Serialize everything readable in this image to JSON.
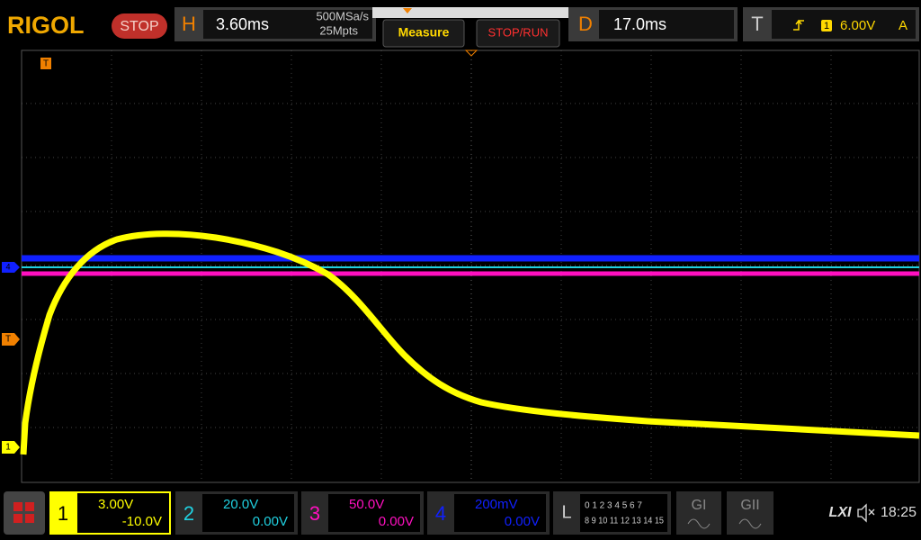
{
  "header": {
    "brand": "RIGOL",
    "run_state": "STOP",
    "horizontal": {
      "label": "H",
      "timebase": "3.60ms",
      "sample_rate": "500MSa/s",
      "memory_depth": "25Mpts"
    },
    "menu": {
      "measure": "Measure",
      "stop_run": "STOP/RUN"
    },
    "delay": {
      "label": "D",
      "value": "17.0ms"
    },
    "trigger": {
      "label": "T",
      "source": "1",
      "level": "6.00V",
      "mode": "A"
    }
  },
  "screen_markers": {
    "trigger_top": "T",
    "trigger_level": "T",
    "channel_1": "1",
    "channel_4": "4"
  },
  "channels": [
    {
      "number": "1",
      "scale": "3.00V",
      "offset": "-10.0V"
    },
    {
      "number": "2",
      "scale": "20.0V",
      "offset": "0.00V"
    },
    {
      "number": "3",
      "scale": "50.0V",
      "offset": "0.00V"
    },
    {
      "number": "4",
      "scale": "200mV",
      "offset": "0.00V"
    }
  ],
  "logic": {
    "label": "L",
    "row1": "0 1 2 3  4 5 6 7",
    "row2": "8 9 10 11 12 13 14 15"
  },
  "generators": [
    "GI",
    "GII"
  ],
  "status": {
    "lxi": "LXI",
    "time": "18:25"
  }
}
